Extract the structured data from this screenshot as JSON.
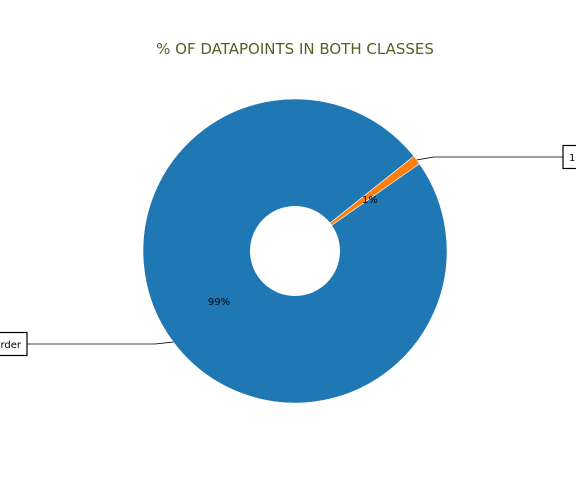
{
  "chart_data": {
    "type": "pie",
    "title": "% OF DATAPOINTS IN BOTH CLASSES",
    "title_color": "#4f6228",
    "start_angle_deg": 35,
    "slices": [
      {
        "label": "Order",
        "label_visible": "order",
        "value": 99,
        "pct_label": "99%",
        "color": "#1f77b4"
      },
      {
        "label": "1",
        "label_visible": "1",
        "value": 1,
        "pct_label": "1%",
        "color": "#ff7f0e"
      }
    ]
  }
}
